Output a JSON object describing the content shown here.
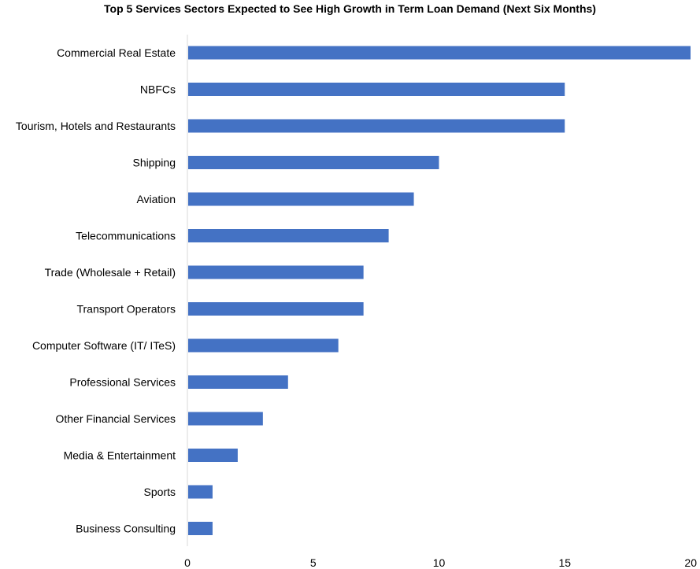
{
  "chart_data": {
    "type": "bar",
    "orientation": "horizontal",
    "title": "Top 5 Services Sectors Expected to See High Growth in Term Loan Demand (Next Six Months)",
    "categories": [
      "Commercial Real Estate",
      "NBFCs",
      "Tourism, Hotels and Restaurants",
      "Shipping",
      "Aviation",
      "Telecommunications",
      "Trade (Wholesale + Retail)",
      "Transport Operators",
      "Computer Software (IT/ ITeS)",
      "Professional Services",
      "Other Financial Services",
      "Media & Entertainment",
      "Sports",
      "Business Consulting"
    ],
    "values": [
      20,
      15,
      15,
      10,
      9,
      8,
      7,
      7,
      6,
      4,
      3,
      2,
      1,
      1
    ],
    "xlim": [
      0,
      20
    ],
    "xticks": [
      0,
      5,
      10,
      15,
      20
    ],
    "xlabel": "",
    "ylabel": "",
    "grid": false,
    "legend": "none",
    "bar_color": "#4472C4",
    "axis_color": "#d9d9d9"
  }
}
